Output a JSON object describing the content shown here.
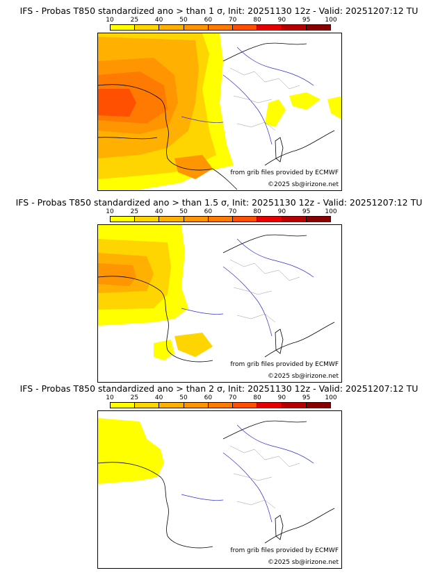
{
  "colorbar": {
    "ticks": [
      "10",
      "25",
      "40",
      "50",
      "60",
      "70",
      "80",
      "90",
      "95",
      "100"
    ],
    "colors": [
      "#ffff00",
      "#ffd500",
      "#ffb000",
      "#ff9500",
      "#ff7a00",
      "#ff4f00",
      "#e60000",
      "#b80000",
      "#8a0000"
    ]
  },
  "panels": [
    {
      "title": "IFS - Probas T850  standardized ano > than 1 σ, Init: 20251130 12z - Valid: 20251207:12 TU",
      "source": "from grib files provided by ECMWF",
      "copyright": "©2025 sb@irizone.net"
    },
    {
      "title": "IFS - Probas T850  standardized ano > than 1.5 σ, Init: 20251130 12z - Valid: 20251207:12 TU",
      "source": "from grib files provided by ECMWF",
      "copyright": "©2025 sb@irizone.net"
    },
    {
      "title": "IFS - Probas T850  standardized ano > than 2 σ, Init: 20251130 12z - Valid: 20251207:12 TU",
      "source": "from grib files provided by ECMWF",
      "copyright": "©2025 sb@irizone.net"
    }
  ]
}
